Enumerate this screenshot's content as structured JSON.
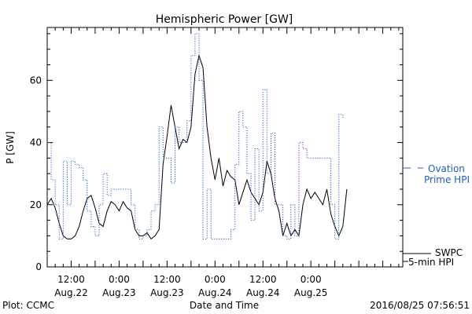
{
  "chart_data": {
    "type": "line",
    "title": "Hemispheric Power [GW]",
    "ylabel": "P [GW]",
    "xlabel": "Date and Time",
    "ylim": [
      0,
      77
    ],
    "xlim_hours": [
      0,
      89
    ],
    "yticks": [
      0,
      20,
      40,
      60
    ],
    "xticks": [
      {
        "hour": 6,
        "time": "12:00",
        "date": "Aug.22"
      },
      {
        "hour": 18,
        "time": "0:00",
        "date": "Aug.23"
      },
      {
        "hour": 30,
        "time": "12:00",
        "date": "Aug.23"
      },
      {
        "hour": 42,
        "time": "0:00",
        "date": "Aug.24"
      },
      {
        "hour": 54,
        "time": "12:00",
        "date": "Aug.24"
      },
      {
        "hour": 66,
        "time": "0:00",
        "date": "Aug.25"
      }
    ],
    "series": [
      {
        "name": "SWPC 5-min HPI",
        "style": "solid",
        "color": "#000000",
        "points": [
          [
            0,
            20
          ],
          [
            1,
            22
          ],
          [
            2,
            19
          ],
          [
            3,
            14
          ],
          [
            4,
            10
          ],
          [
            5,
            9
          ],
          [
            6,
            9
          ],
          [
            7,
            10
          ],
          [
            8,
            13
          ],
          [
            9,
            18
          ],
          [
            10,
            22
          ],
          [
            11,
            23
          ],
          [
            12,
            19
          ],
          [
            13,
            14
          ],
          [
            14,
            13
          ],
          [
            15,
            18
          ],
          [
            16,
            21
          ],
          [
            17,
            20
          ],
          [
            18,
            18
          ],
          [
            19,
            21
          ],
          [
            20,
            19
          ],
          [
            21,
            18
          ],
          [
            22,
            12
          ],
          [
            23,
            10
          ],
          [
            24,
            10
          ],
          [
            25,
            11
          ],
          [
            26,
            9
          ],
          [
            27,
            10
          ],
          [
            28,
            12
          ],
          [
            29,
            33
          ],
          [
            30,
            42
          ],
          [
            31,
            52
          ],
          [
            32,
            45
          ],
          [
            33,
            38
          ],
          [
            34,
            41
          ],
          [
            35,
            40
          ],
          [
            36,
            45
          ],
          [
            37,
            62
          ],
          [
            38,
            68
          ],
          [
            39,
            64
          ],
          [
            40,
            45
          ],
          [
            41,
            35
          ],
          [
            42,
            28
          ],
          [
            43,
            35
          ],
          [
            44,
            26
          ],
          [
            45,
            31
          ],
          [
            46,
            29
          ],
          [
            47,
            28
          ],
          [
            48,
            20
          ],
          [
            49,
            24
          ],
          [
            50,
            28
          ],
          [
            51,
            24
          ],
          [
            52,
            22
          ],
          [
            53,
            20
          ],
          [
            54,
            24
          ],
          [
            55,
            34
          ],
          [
            56,
            30
          ],
          [
            57,
            22
          ],
          [
            58,
            18
          ],
          [
            59,
            10
          ],
          [
            60,
            14
          ],
          [
            61,
            10
          ],
          [
            62,
            12
          ],
          [
            63,
            10
          ],
          [
            64,
            20
          ],
          [
            65,
            25
          ],
          [
            66,
            22
          ],
          [
            67,
            24
          ],
          [
            68,
            22
          ],
          [
            69,
            20
          ],
          [
            70,
            25
          ],
          [
            71,
            17
          ],
          [
            72,
            13
          ],
          [
            73,
            10
          ],
          [
            74,
            13
          ],
          [
            75,
            25
          ]
        ]
      },
      {
        "name": "Ovation Prime HPI",
        "style": "dotted",
        "color": "#1f5fbf",
        "points": [
          [
            0,
            40
          ],
          [
            1,
            28
          ],
          [
            2,
            20
          ],
          [
            3,
            9
          ],
          [
            4,
            34
          ],
          [
            5,
            20
          ],
          [
            6,
            34
          ],
          [
            7,
            33
          ],
          [
            8,
            32
          ],
          [
            9,
            28
          ],
          [
            10,
            18
          ],
          [
            11,
            13
          ],
          [
            12,
            10
          ],
          [
            13,
            20
          ],
          [
            14,
            30
          ],
          [
            15,
            23
          ],
          [
            16,
            25
          ],
          [
            17,
            25
          ],
          [
            18,
            25
          ],
          [
            19,
            25
          ],
          [
            20,
            25
          ],
          [
            21,
            20
          ],
          [
            22,
            12
          ],
          [
            23,
            9
          ],
          [
            24,
            10
          ],
          [
            25,
            12
          ],
          [
            26,
            18
          ],
          [
            27,
            20
          ],
          [
            28,
            45
          ],
          [
            29,
            35
          ],
          [
            30,
            35
          ],
          [
            31,
            27
          ],
          [
            32,
            45
          ],
          [
            33,
            40
          ],
          [
            34,
            40
          ],
          [
            35,
            47
          ],
          [
            36,
            68
          ],
          [
            37,
            75
          ],
          [
            38,
            60
          ],
          [
            39,
            9
          ],
          [
            40,
            25
          ],
          [
            41,
            9
          ],
          [
            42,
            9
          ],
          [
            43,
            9
          ],
          [
            44,
            9
          ],
          [
            45,
            9
          ],
          [
            46,
            12
          ],
          [
            47,
            33
          ],
          [
            48,
            50
          ],
          [
            49,
            45
          ],
          [
            50,
            30
          ],
          [
            51,
            15
          ],
          [
            52,
            38
          ],
          [
            53,
            18
          ],
          [
            54,
            57
          ],
          [
            55,
            30
          ],
          [
            56,
            43
          ],
          [
            57,
            20
          ],
          [
            58,
            20
          ],
          [
            59,
            10
          ],
          [
            60,
            9
          ],
          [
            61,
            20
          ],
          [
            62,
            10
          ],
          [
            63,
            40
          ],
          [
            64,
            38
          ],
          [
            65,
            35
          ],
          [
            66,
            35
          ],
          [
            67,
            35
          ],
          [
            68,
            35
          ],
          [
            69,
            35
          ],
          [
            70,
            35
          ],
          [
            71,
            20
          ],
          [
            72,
            9
          ],
          [
            73,
            49
          ],
          [
            74,
            48
          ]
        ]
      }
    ],
    "legend": {
      "ovation_line1": "Ovation",
      "ovation_line2": "Prime HPI",
      "swpc_line1": "SWPC",
      "swpc_line2": "5-min HPI"
    },
    "footer": {
      "left": "Plot: CCMC",
      "center": "Date and Time",
      "right": "2016/08/25 07:56:51"
    }
  }
}
